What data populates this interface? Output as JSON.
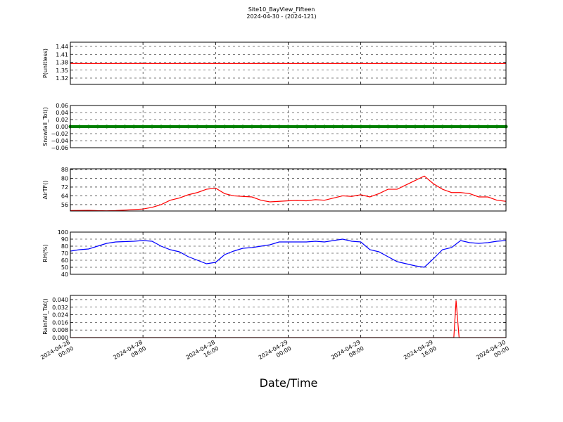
{
  "chart_data": [
    {
      "type": "line",
      "title": "Site10_BayView_Fifteen",
      "subtitle": "2024-04-30 - (2024-121)",
      "ylabel": "P(unitless)",
      "x": [
        "2024-04-28 00:00",
        "2024-04-30 00:00"
      ],
      "series": [
        {
          "name": "P",
          "color": "#ff0000",
          "values": [
            1.375,
            1.375
          ]
        }
      ],
      "ylim": [
        1.296,
        1.456
      ],
      "yticks": [
        1.32,
        1.35,
        1.38,
        1.41,
        1.44
      ],
      "grid": true
    },
    {
      "type": "line",
      "ylabel": "Snowfall_Tot()",
      "marker": true,
      "x": [
        "2024-04-28 00:00",
        "2024-04-28 01:00",
        "2024-04-28 02:00",
        "2024-04-28 03:00",
        "2024-04-28 04:00",
        "2024-04-28 05:00",
        "2024-04-28 06:00",
        "2024-04-28 07:00",
        "2024-04-28 08:00",
        "2024-04-28 09:00",
        "2024-04-28 10:00",
        "2024-04-28 11:00",
        "2024-04-28 12:00",
        "2024-04-28 13:00",
        "2024-04-28 14:00",
        "2024-04-28 15:00",
        "2024-04-28 16:00",
        "2024-04-28 17:00",
        "2024-04-28 18:00",
        "2024-04-28 19:00",
        "2024-04-28 20:00",
        "2024-04-28 21:00",
        "2024-04-28 22:00",
        "2024-04-28 23:00",
        "2024-04-29 00:00",
        "2024-04-29 01:00",
        "2024-04-29 02:00",
        "2024-04-29 03:00",
        "2024-04-29 04:00",
        "2024-04-29 05:00",
        "2024-04-29 06:00",
        "2024-04-29 07:00",
        "2024-04-29 08:00",
        "2024-04-29 09:00",
        "2024-04-29 10:00",
        "2024-04-29 11:00",
        "2024-04-29 12:00",
        "2024-04-29 13:00",
        "2024-04-29 14:00",
        "2024-04-29 15:00",
        "2024-04-29 16:00",
        "2024-04-29 17:00",
        "2024-04-29 18:00",
        "2024-04-29 19:00",
        "2024-04-29 20:00",
        "2024-04-29 21:00",
        "2024-04-29 22:00",
        "2024-04-29 23:00",
        "2024-04-30 00:00"
      ],
      "series": [
        {
          "name": "Snowfall_Tot",
          "color": "#008000",
          "values": [
            0,
            0,
            0,
            0,
            0,
            0,
            0,
            0,
            0,
            0,
            0,
            0,
            0,
            0,
            0,
            0,
            0,
            0,
            0,
            0,
            0,
            0,
            0,
            0,
            0,
            0,
            0,
            0,
            0,
            0,
            0,
            0,
            0,
            0,
            0,
            0,
            0,
            0,
            0,
            0,
            0,
            0,
            0,
            0,
            0,
            0,
            0,
            0,
            0
          ]
        }
      ],
      "ylim": [
        -0.06,
        0.06
      ],
      "yticks": [
        {
          "value": -0.06,
          "label": "−0.06"
        },
        {
          "value": -0.04,
          "label": "−0.04"
        },
        {
          "value": -0.02,
          "label": "−0.02"
        },
        {
          "value": 0,
          "label": "0.00"
        },
        0.02,
        0.04,
        0.06
      ],
      "grid": true
    },
    {
      "type": "line",
      "ylabel": "AirTF()",
      "x": [
        "2024-04-28 00:00",
        "2024-04-28 01:00",
        "2024-04-28 02:00",
        "2024-04-28 03:00",
        "2024-04-28 04:00",
        "2024-04-28 05:00",
        "2024-04-28 06:00",
        "2024-04-28 07:00",
        "2024-04-28 08:00",
        "2024-04-28 09:00",
        "2024-04-28 10:00",
        "2024-04-28 11:00",
        "2024-04-28 12:00",
        "2024-04-28 13:00",
        "2024-04-28 14:00",
        "2024-04-28 15:00",
        "2024-04-28 16:00",
        "2024-04-28 17:00",
        "2024-04-28 18:00",
        "2024-04-28 19:00",
        "2024-04-28 20:00",
        "2024-04-28 21:00",
        "2024-04-28 22:00",
        "2024-04-28 23:00",
        "2024-04-29 00:00",
        "2024-04-29 01:00",
        "2024-04-29 02:00",
        "2024-04-29 03:00",
        "2024-04-29 04:00",
        "2024-04-29 05:00",
        "2024-04-29 06:00",
        "2024-04-29 07:00",
        "2024-04-29 08:00",
        "2024-04-29 09:00",
        "2024-04-29 10:00",
        "2024-04-29 11:00",
        "2024-04-29 12:00",
        "2024-04-29 13:00",
        "2024-04-29 14:00",
        "2024-04-29 15:00",
        "2024-04-29 16:00",
        "2024-04-29 17:00",
        "2024-04-29 18:00",
        "2024-04-29 19:00",
        "2024-04-29 20:00",
        "2024-04-29 21:00",
        "2024-04-29 22:00",
        "2024-04-29 23:00",
        "2024-04-30 00:00"
      ],
      "series": [
        {
          "name": "AirTF",
          "color": "#ff0000",
          "values": [
            50.6,
            50.7,
            50.8,
            50.5,
            50.4,
            50.6,
            51,
            51.5,
            52,
            53.5,
            56,
            60,
            62,
            65,
            67,
            70,
            71,
            66,
            64,
            63.5,
            63,
            60,
            58.5,
            59,
            59.5,
            59.8,
            59.5,
            60.5,
            60,
            62,
            64,
            63.5,
            65,
            63,
            66,
            70,
            70,
            74,
            78,
            82,
            75,
            70,
            67,
            67,
            66,
            63,
            63,
            60,
            59
          ]
        }
      ],
      "ylim": [
        50.2,
        88.6
      ],
      "yticks": [
        56,
        64,
        72,
        80,
        88
      ],
      "grid": true
    },
    {
      "type": "line",
      "ylabel": "RH(%)",
      "x": [
        "2024-04-28 00:00",
        "2024-04-28 01:00",
        "2024-04-28 02:00",
        "2024-04-28 03:00",
        "2024-04-28 04:00",
        "2024-04-28 05:00",
        "2024-04-28 06:00",
        "2024-04-28 07:00",
        "2024-04-28 08:00",
        "2024-04-28 09:00",
        "2024-04-28 10:00",
        "2024-04-28 11:00",
        "2024-04-28 12:00",
        "2024-04-28 13:00",
        "2024-04-28 14:00",
        "2024-04-28 15:00",
        "2024-04-28 16:00",
        "2024-04-28 17:00",
        "2024-04-28 18:00",
        "2024-04-28 19:00",
        "2024-04-28 20:00",
        "2024-04-28 21:00",
        "2024-04-28 22:00",
        "2024-04-28 23:00",
        "2024-04-29 00:00",
        "2024-04-29 01:00",
        "2024-04-29 02:00",
        "2024-04-29 03:00",
        "2024-04-29 04:00",
        "2024-04-29 05:00",
        "2024-04-29 06:00",
        "2024-04-29 07:00",
        "2024-04-29 08:00",
        "2024-04-29 09:00",
        "2024-04-29 10:00",
        "2024-04-29 11:00",
        "2024-04-29 12:00",
        "2024-04-29 13:00",
        "2024-04-29 14:00",
        "2024-04-29 15:00",
        "2024-04-29 16:00",
        "2024-04-29 17:00",
        "2024-04-29 18:00",
        "2024-04-29 19:00",
        "2024-04-29 20:00",
        "2024-04-29 21:00",
        "2024-04-29 22:00",
        "2024-04-29 23:00",
        "2024-04-30 00:00"
      ],
      "series": [
        {
          "name": "RH",
          "color": "#0000ff",
          "values": [
            73,
            75,
            76,
            80,
            84,
            86,
            86.5,
            87,
            88,
            87,
            80,
            75,
            72,
            65,
            60,
            55,
            57,
            68,
            73,
            77,
            78,
            80,
            82,
            86,
            86,
            86,
            86,
            87,
            86,
            88,
            90,
            87,
            86,
            75,
            72,
            65,
            58,
            55,
            52,
            50,
            62,
            75,
            78,
            88,
            85,
            84,
            85,
            87,
            88
          ]
        }
      ],
      "ylim": [
        40,
        100
      ],
      "yticks": [
        40,
        50,
        60,
        70,
        80,
        90,
        100
      ],
      "grid": true
    },
    {
      "type": "line",
      "ylabel": "Rainfall_Tot()",
      "xlabel": "Date/Time",
      "x": [
        "2024-04-28 00:00",
        "2024-04-29 18:15",
        "2024-04-29 18:30",
        "2024-04-29 18:50",
        "2024-04-30 00:00"
      ],
      "series": [
        {
          "name": "Rainfall_Tot",
          "color": "#ff0000",
          "values": [
            0,
            0,
            0.039,
            0,
            0
          ]
        }
      ],
      "ylim": [
        0,
        0.0444
      ],
      "yticks": [
        {
          "value": 0,
          "label": "0.000"
        },
        {
          "value": 0.008,
          "label": "0.008"
        },
        {
          "value": 0.016,
          "label": "0.016"
        },
        {
          "value": 0.024,
          "label": "0.024"
        },
        {
          "value": 0.032,
          "label": "0.032"
        },
        {
          "value": 0.04,
          "label": "0.040"
        }
      ],
      "xlim": [
        "2024-04-28 00:00",
        "2024-04-30 00:00"
      ],
      "xticks": [
        {
          "value": "2024-04-28 00:00",
          "label": "2024-04-28\n00:00"
        },
        {
          "value": "2024-04-28 08:00",
          "label": "2024-04-28\n08:00"
        },
        {
          "value": "2024-04-28 16:00",
          "label": "2024-04-28\n16:00"
        },
        {
          "value": "2024-04-29 00:00",
          "label": "2024-04-29\n00:00"
        },
        {
          "value": "2024-04-29 08:00",
          "label": "2024-04-29\n08:00"
        },
        {
          "value": "2024-04-29 16:00",
          "label": "2024-04-29\n16:00"
        },
        {
          "value": "2024-04-30 00:00",
          "label": "2024-04-30\n00:00"
        }
      ],
      "grid": true
    }
  ]
}
